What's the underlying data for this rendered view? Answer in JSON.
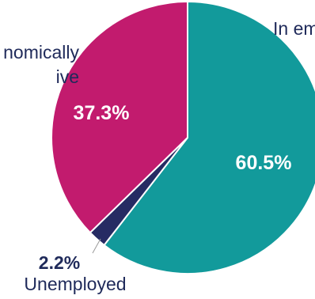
{
  "chart_data": {
    "type": "pie",
    "title": "",
    "series": [
      {
        "values": [
          60.5,
          2.2,
          37.3
        ],
        "slices": [
          {
            "label": "In em",
            "value": 60.5,
            "value_label": "60.5%",
            "color": "#129A9B",
            "label_color": "#1F2A5A",
            "value_label_color": "#FFFFFF"
          },
          {
            "label": "Unemployed",
            "value": 2.2,
            "value_label": "2.2%",
            "color": "#262B63",
            "label_color": "#1F2A5A",
            "value_label_color": "#1F2A5A"
          },
          {
            "label_lines": [
              "nomically",
              "ive"
            ],
            "value": 37.3,
            "value_label": "37.3%",
            "color": "#C21B6E",
            "label_color": "#1F2A5A",
            "value_label_color": "#FFFFFF"
          }
        ]
      }
    ],
    "start_angle_deg": 0,
    "direction": "clockwise",
    "slice_border_color": "#FFFFFF",
    "leader_line_color": "#9A9A9A"
  }
}
